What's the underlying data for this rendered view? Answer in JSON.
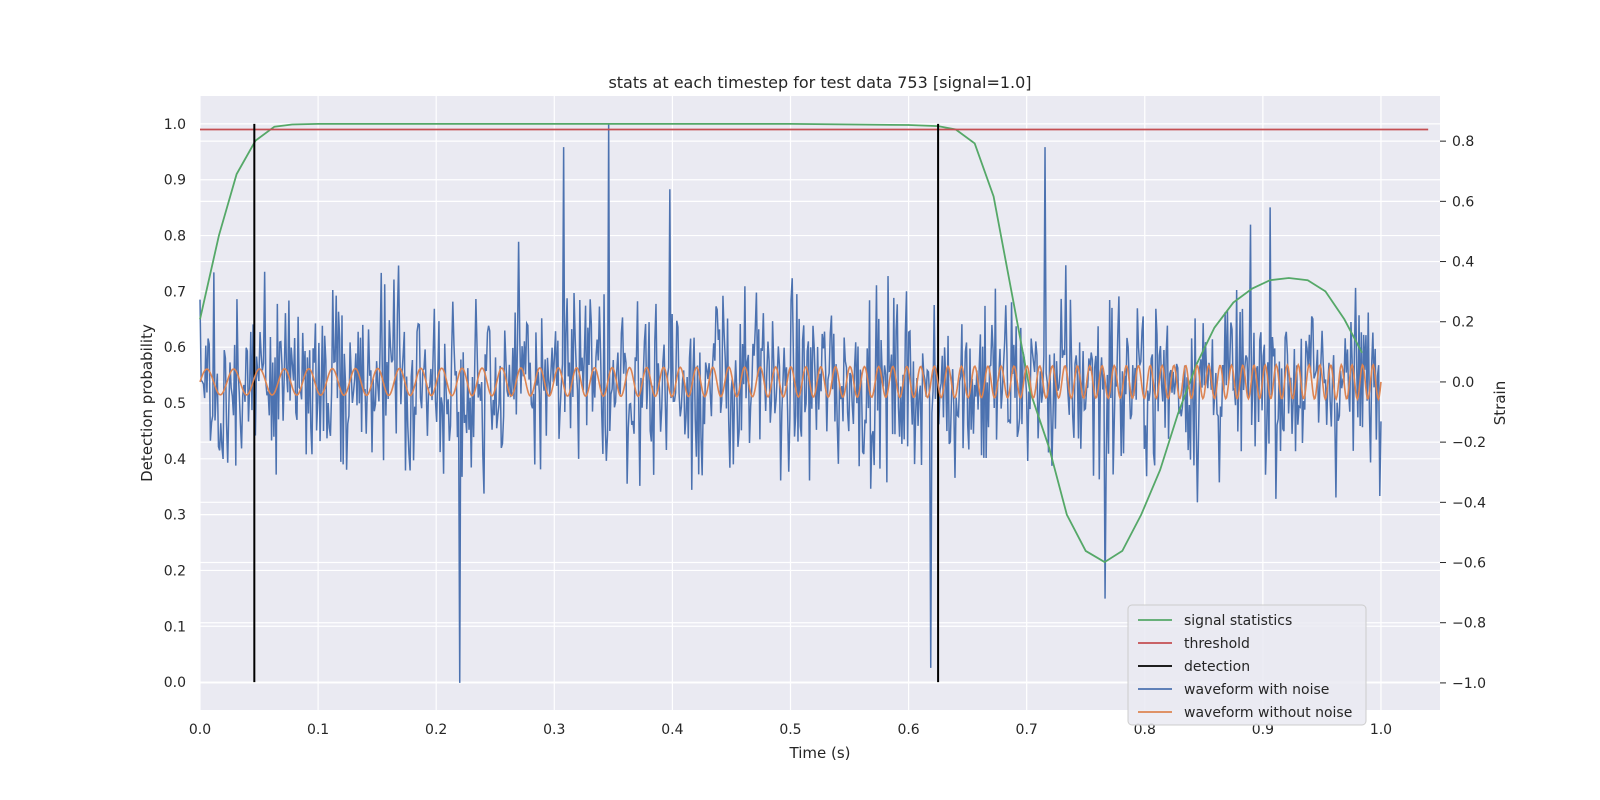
{
  "chart_data": {
    "type": "line",
    "title": "stats at each timestep for test data 753 [signal=1.0]",
    "xlabel": "Time (s)",
    "ylabel_left": "Detection probability",
    "ylabel_right": "Strain",
    "xlim": [
      0.0,
      1.05
    ],
    "ylim_left": [
      -0.05,
      1.05
    ],
    "ylim_right": [
      -1.09,
      0.95
    ],
    "xticks": [
      {
        "value": 0.0,
        "label": "0.0"
      },
      {
        "value": 0.1,
        "label": "0.1"
      },
      {
        "value": 0.2,
        "label": "0.2"
      },
      {
        "value": 0.3,
        "label": "0.3"
      },
      {
        "value": 0.4,
        "label": "0.4"
      },
      {
        "value": 0.5,
        "label": "0.5"
      },
      {
        "value": 0.6,
        "label": "0.6"
      },
      {
        "value": 0.7,
        "label": "0.7"
      },
      {
        "value": 0.8,
        "label": "0.8"
      },
      {
        "value": 0.9,
        "label": "0.9"
      },
      {
        "value": 1.0,
        "label": "1.0"
      }
    ],
    "yticks_left": [
      {
        "value": 0.0,
        "label": "0.0"
      },
      {
        "value": 0.1,
        "label": "0.1"
      },
      {
        "value": 0.2,
        "label": "0.2"
      },
      {
        "value": 0.3,
        "label": "0.3"
      },
      {
        "value": 0.4,
        "label": "0.4"
      },
      {
        "value": 0.5,
        "label": "0.5"
      },
      {
        "value": 0.6,
        "label": "0.6"
      },
      {
        "value": 0.7,
        "label": "0.7"
      },
      {
        "value": 0.8,
        "label": "0.8"
      },
      {
        "value": 0.9,
        "label": "0.9"
      },
      {
        "value": 1.0,
        "label": "1.0"
      }
    ],
    "yticks_right": [
      {
        "value": -1.0,
        "label": "−1.0"
      },
      {
        "value": -0.8,
        "label": "−0.8"
      },
      {
        "value": -0.6,
        "label": "−0.6"
      },
      {
        "value": -0.4,
        "label": "−0.4"
      },
      {
        "value": -0.2,
        "label": "−0.2"
      },
      {
        "value": 0.0,
        "label": "0.0"
      },
      {
        "value": 0.2,
        "label": "0.2"
      },
      {
        "value": 0.4,
        "label": "0.4"
      },
      {
        "value": 0.6,
        "label": "0.6"
      },
      {
        "value": 0.8,
        "label": "0.8"
      }
    ],
    "grid": true,
    "legend_position": "lower right",
    "series": [
      {
        "name": "signal statistics",
        "axis": "left",
        "color": "#55a868",
        "x": [
          0.0,
          0.016,
          0.031,
          0.047,
          0.063,
          0.078,
          0.1,
          0.2,
          0.3,
          0.4,
          0.5,
          0.6,
          0.625,
          0.64,
          0.656,
          0.672,
          0.688,
          0.703,
          0.719,
          0.734,
          0.75,
          0.766,
          0.781,
          0.797,
          0.813,
          0.828,
          0.844,
          0.859,
          0.875,
          0.891,
          0.906,
          0.922,
          0.938,
          0.953,
          0.969,
          0.984
        ],
        "y": [
          0.65,
          0.8,
          0.91,
          0.97,
          0.995,
          0.999,
          1.0,
          1.0,
          1.0,
          1.0,
          1.0,
          0.998,
          0.996,
          0.99,
          0.965,
          0.87,
          0.69,
          0.52,
          0.42,
          0.3,
          0.235,
          0.215,
          0.235,
          0.3,
          0.38,
          0.48,
          0.57,
          0.635,
          0.68,
          0.705,
          0.72,
          0.724,
          0.72,
          0.7,
          0.65,
          0.59
        ]
      },
      {
        "name": "threshold",
        "axis": "left",
        "color": "#c44e52",
        "x": [
          0.0,
          1.04
        ],
        "y": [
          0.99,
          0.99
        ]
      },
      {
        "name": "detection",
        "axis": "left",
        "color": "#000000",
        "lines": [
          {
            "x": 0.046,
            "y": [
              0.0,
              1.0
            ]
          },
          {
            "x": 0.625,
            "y": [
              0.0,
              1.0
            ]
          }
        ]
      },
      {
        "name": "waveform with noise",
        "axis": "right",
        "color": "#4c72b0",
        "x_start": 0.0,
        "x_end": 1.0,
        "amplitude": 0.28,
        "min": -1.0,
        "max": 0.86,
        "peaks": [
          {
            "x": 0.22,
            "y": -1.0
          },
          {
            "x": 0.346,
            "y": 0.86
          },
          {
            "x": 0.308,
            "y": 0.78
          },
          {
            "x": 0.398,
            "y": 0.64
          },
          {
            "x": 0.619,
            "y": -0.95
          },
          {
            "x": 0.716,
            "y": 0.78
          },
          {
            "x": 0.906,
            "y": 0.58
          },
          {
            "x": 0.766,
            "y": -0.72
          }
        ]
      },
      {
        "name": "waveform without noise",
        "axis": "right",
        "color": "#dd8452",
        "x_start": 0.0,
        "x_end": 1.0,
        "amplitude": 0.05,
        "cycles": 78
      }
    ]
  }
}
